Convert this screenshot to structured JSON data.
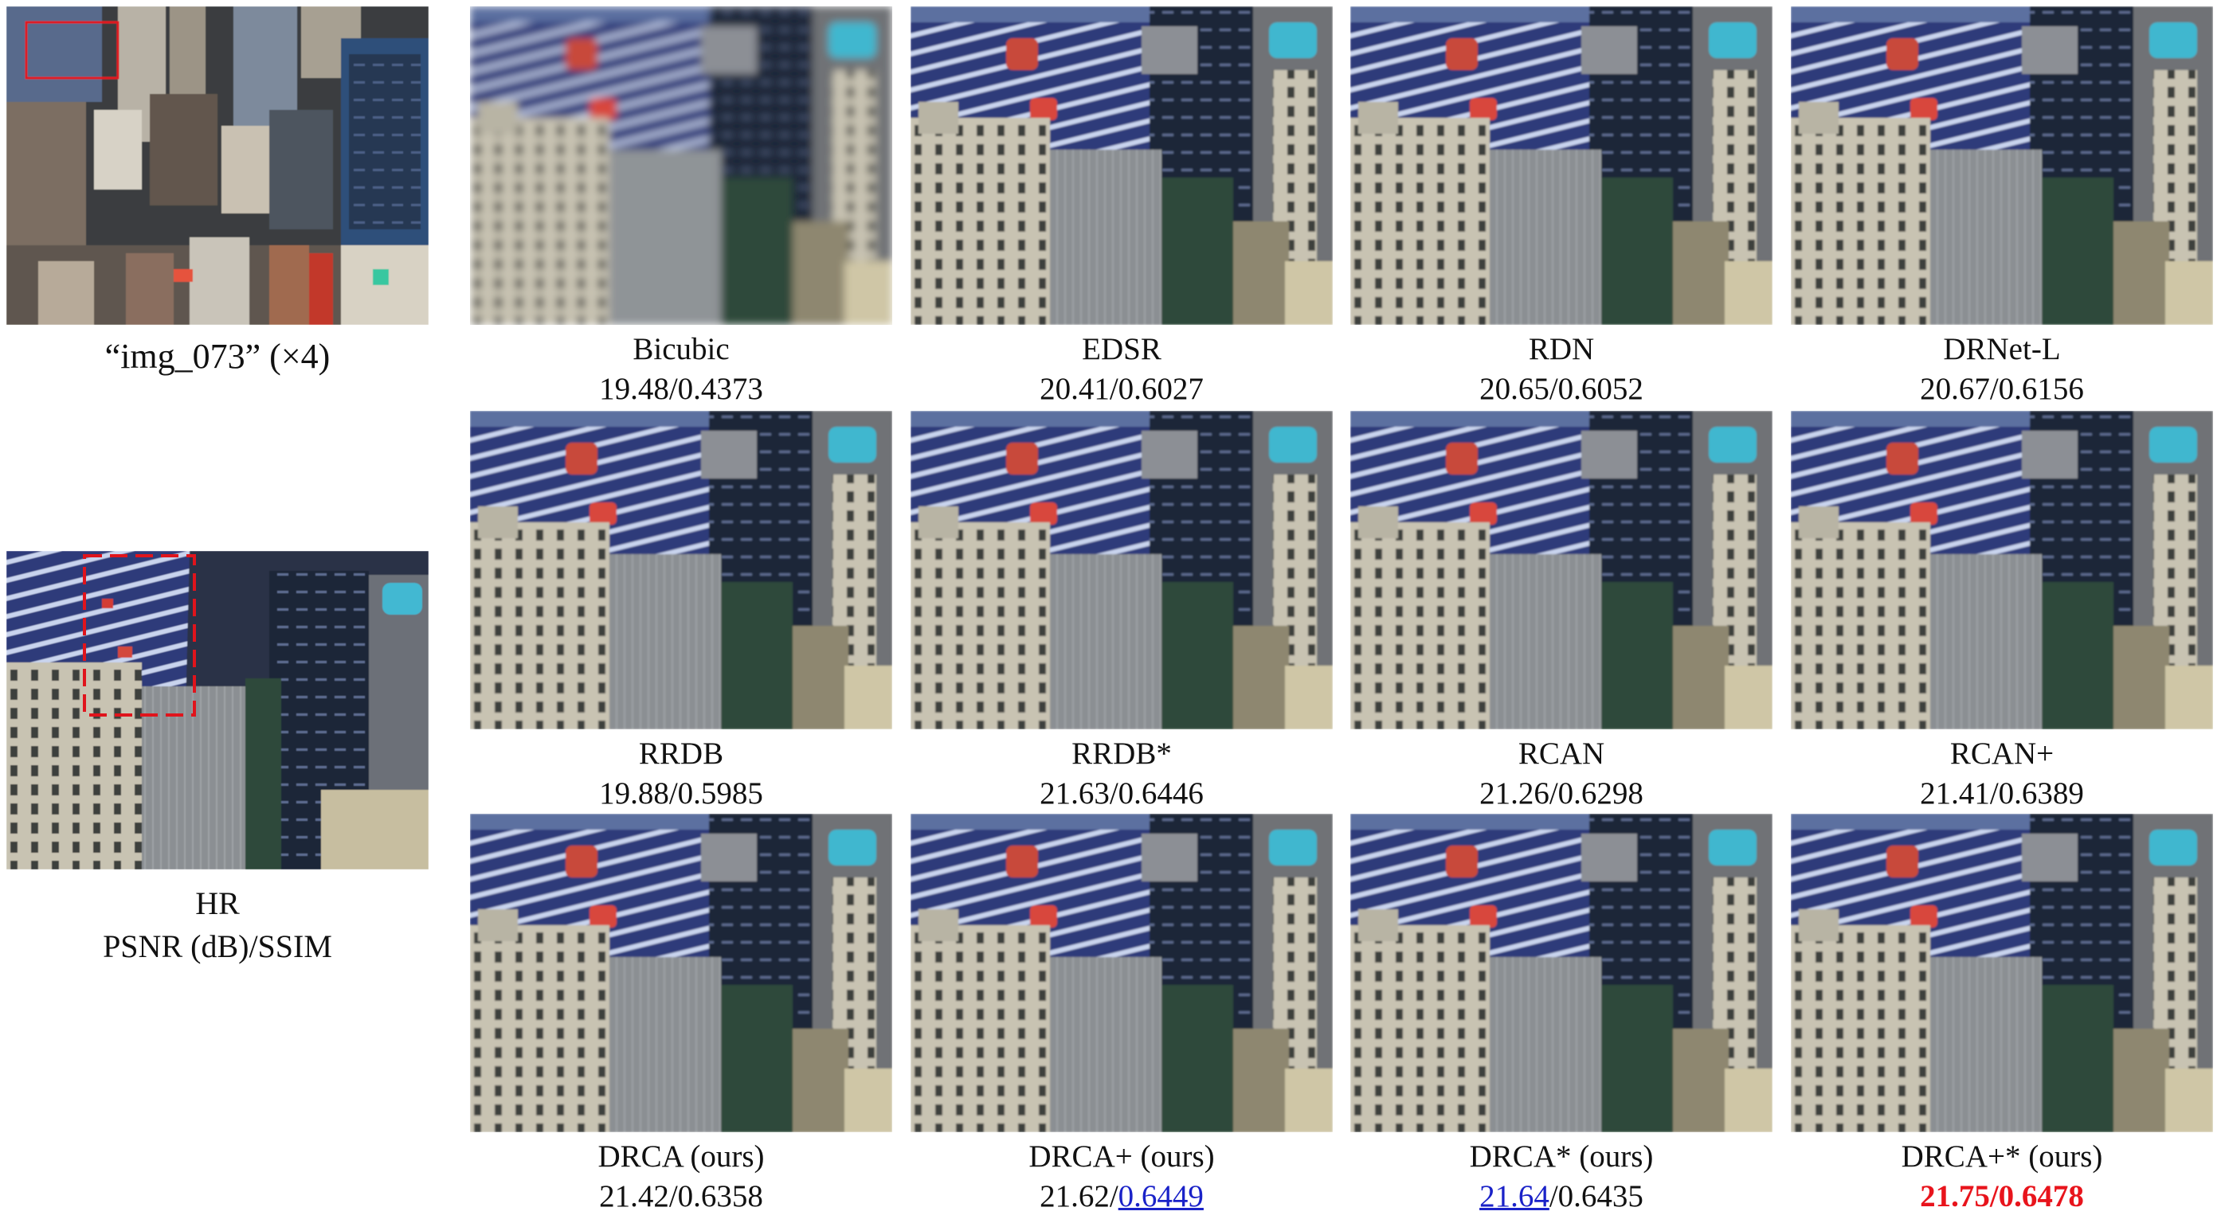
{
  "figure": {
    "overview_caption": "“img_073” (×4)",
    "hr_caption": "HR",
    "metric_caption": "PSNR (dB)/SSIM"
  },
  "methods": [
    {
      "name": "Bicubic",
      "psnr": "19.48",
      "ssim": "0.4373",
      "psnr_style": "plain",
      "ssim_style": "plain"
    },
    {
      "name": "EDSR",
      "psnr": "20.41",
      "ssim": "0.6027",
      "psnr_style": "plain",
      "ssim_style": "plain"
    },
    {
      "name": "RDN",
      "psnr": "20.65",
      "ssim": "0.6052",
      "psnr_style": "plain",
      "ssim_style": "plain"
    },
    {
      "name": "DRNet-L",
      "psnr": "20.67",
      "ssim": "0.6156",
      "psnr_style": "plain",
      "ssim_style": "plain"
    },
    {
      "name": "RRDB",
      "psnr": "19.88",
      "ssim": "0.5985",
      "psnr_style": "plain",
      "ssim_style": "plain"
    },
    {
      "name": "RRDB*",
      "psnr": "21.63",
      "ssim": "0.6446",
      "psnr_style": "plain",
      "ssim_style": "plain"
    },
    {
      "name": "RCAN",
      "psnr": "21.26",
      "ssim": "0.6298",
      "psnr_style": "plain",
      "ssim_style": "plain"
    },
    {
      "name": "RCAN+",
      "psnr": "21.41",
      "ssim": "0.6389",
      "psnr_style": "plain",
      "ssim_style": "plain"
    },
    {
      "name": "DRCA (ours)",
      "psnr": "21.42",
      "ssim": "0.6358",
      "psnr_style": "plain",
      "ssim_style": "plain"
    },
    {
      "name": "DRCA+ (ours)",
      "psnr": "21.62",
      "ssim": "0.6449",
      "psnr_style": "plain",
      "ssim_style": "blue"
    },
    {
      "name": "DRCA* (ours)",
      "psnr": "21.64",
      "ssim": "0.6435",
      "psnr_style": "blue",
      "ssim_style": "plain"
    },
    {
      "name": "DRCA+* (ours)",
      "psnr": "21.75",
      "ssim": "0.6478",
      "psnr_style": "red",
      "ssim_style": "red"
    }
  ],
  "colors": {
    "best": "#e8141c",
    "second_best": "#1a22c8",
    "roi_box": "#e0141c"
  }
}
